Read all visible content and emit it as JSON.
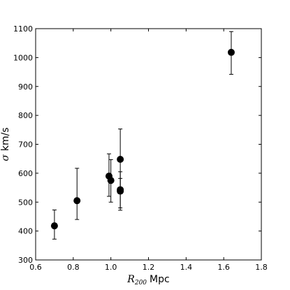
{
  "chart_data": {
    "type": "scatter",
    "title": "",
    "xlabel": {
      "symbol": "R",
      "subscript": "200",
      "unit": "Mpc"
    },
    "ylabel": {
      "symbol": "σ",
      "unit": "km/s"
    },
    "xlim": [
      0.6,
      1.8
    ],
    "ylim": [
      300,
      1100
    ],
    "x_ticks": [
      0.6,
      0.8,
      1.0,
      1.2,
      1.4,
      1.6,
      1.8
    ],
    "x_tick_labels": [
      "0.6",
      "0.8",
      "1.0",
      "1.2",
      "1.4",
      "1.6",
      "1.8"
    ],
    "y_ticks": [
      300,
      400,
      500,
      600,
      700,
      800,
      900,
      1000,
      1100
    ],
    "y_tick_labels": [
      "300",
      "400",
      "500",
      "600",
      "700",
      "800",
      "900",
      "1000",
      "1100"
    ],
    "grid": false,
    "marker_color": "#000000",
    "points": [
      {
        "x": 0.7,
        "y": 418,
        "y_err_low": 372,
        "y_err_high": 473
      },
      {
        "x": 0.82,
        "y": 505,
        "y_err_low": 440,
        "y_err_high": 617
      },
      {
        "x": 0.99,
        "y": 590,
        "y_err_low": 520,
        "y_err_high": 667
      },
      {
        "x": 1.0,
        "y": 575,
        "y_err_low": 500,
        "y_err_high": 647
      },
      {
        "x": 1.05,
        "y": 648,
        "y_err_low": 548,
        "y_err_high": 753
      },
      {
        "x": 1.05,
        "y": 543,
        "y_err_low": 480,
        "y_err_high": 605
      },
      {
        "x": 1.05,
        "y": 538,
        "y_err_low": 472,
        "y_err_high": 582
      },
      {
        "x": 1.64,
        "y": 1018,
        "y_err_low": 942,
        "y_err_high": 1090
      }
    ]
  }
}
